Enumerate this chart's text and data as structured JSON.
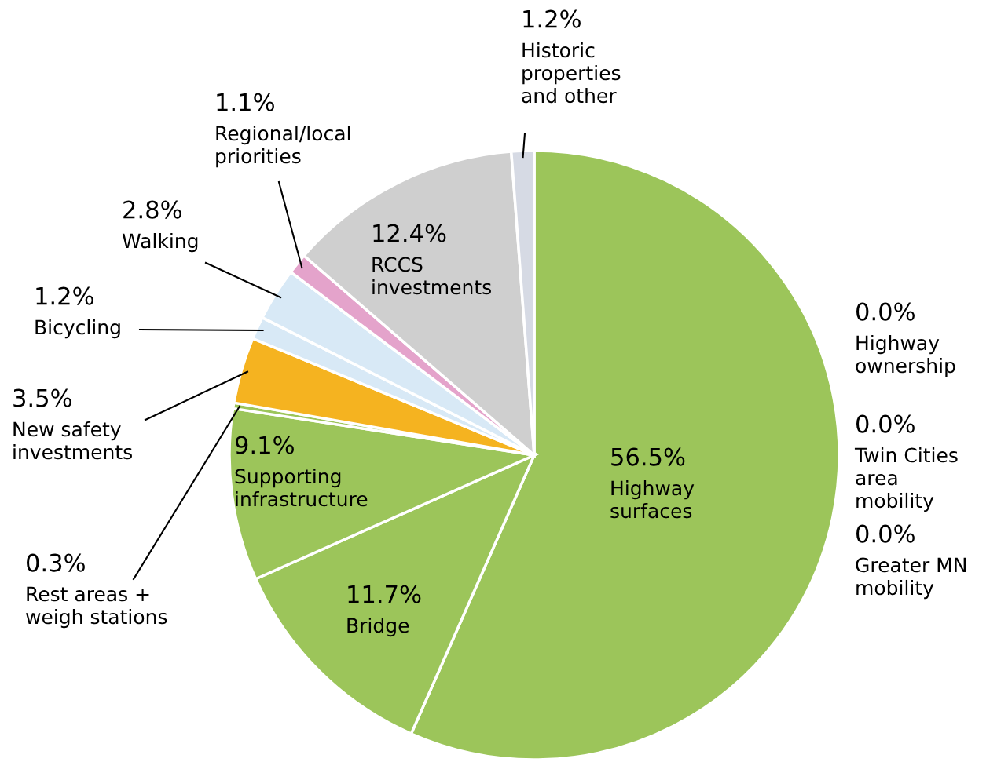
{
  "chart_data": {
    "type": "pie",
    "categories": [
      "Highway surfaces",
      "Bridge",
      "Supporting infrastructure",
      "Rest areas + weigh stations",
      "New safety investments",
      "Bicycling",
      "Walking",
      "Regional/local priorities",
      "RCCS investments",
      "Historic properties and other",
      "Highway ownership",
      "Twin Cities area mobility",
      "Greater MN mobility"
    ],
    "values": [
      56.5,
      11.7,
      9.1,
      0.3,
      3.5,
      1.2,
      2.8,
      1.1,
      12.4,
      1.2,
      0.0,
      0.0,
      0.0
    ],
    "value_labels": [
      "56.5%",
      "11.7%",
      "9.1%",
      "0.3%",
      "3.5%",
      "1.2%",
      "2.8%",
      "1.1%",
      "12.4%",
      "1.2%",
      "0.0%",
      "0.0%",
      "0.0%"
    ],
    "colors": [
      "#9cc55a",
      "#9cc55a",
      "#9cc55a",
      "#9cc55a",
      "#f5b320",
      "#d8e9f6",
      "#d8e9f6",
      "#e4a3cb",
      "#cfcfcf",
      "#d6dae4",
      "#9cc55a",
      "#9cc55a",
      "#9cc55a"
    ]
  }
}
